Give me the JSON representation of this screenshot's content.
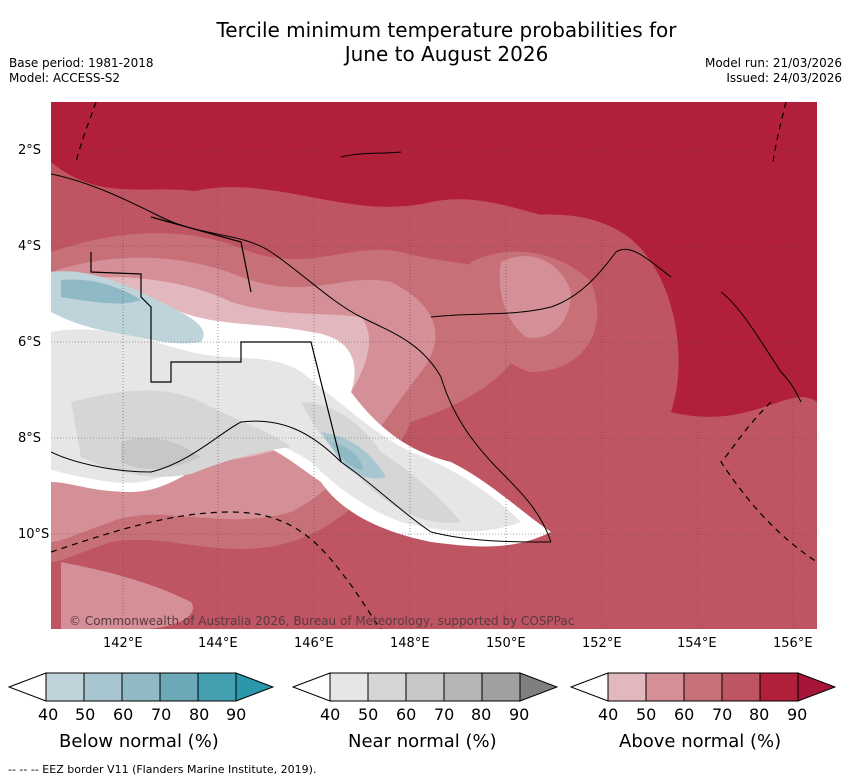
{
  "title_line1": "Tercile minimum temperature probabilities for",
  "title_line2": "June to August 2026",
  "meta": {
    "base_period": "Base period: 1981-2018",
    "model": "Model: ACCESS-S2",
    "model_run": "Model run: 21/03/2026",
    "issued": "Issued: 24/03/2026"
  },
  "map": {
    "lat_labels": [
      "2°S",
      "4°S",
      "6°S",
      "8°S",
      "10°S"
    ],
    "lon_labels": [
      "142°E",
      "144°E",
      "146°E",
      "148°E",
      "150°E",
      "152°E",
      "154°E",
      "156°E"
    ],
    "copyright": "© Commonwealth of Australia 2026, Bureau of Meteorology, supported by COSPPac"
  },
  "colorbars": [
    {
      "name": "below",
      "title": "Below normal (%)",
      "ticks": [
        "40",
        "50",
        "60",
        "70",
        "80",
        "90"
      ],
      "colors": [
        "#bfd4da",
        "#a7c6cf",
        "#8fb9c4",
        "#6ca9b8",
        "#449fb1",
        "#2a97ab"
      ]
    },
    {
      "name": "near",
      "title": "Near normal (%)",
      "ticks": [
        "40",
        "50",
        "60",
        "70",
        "80",
        "90"
      ],
      "colors": [
        "#e6e6e6",
        "#d6d6d6",
        "#c7c7c7",
        "#b5b5b5",
        "#a0a0a0",
        "#7f7f7f"
      ]
    },
    {
      "name": "above",
      "title": "Above normal (%)",
      "ticks": [
        "40",
        "50",
        "60",
        "70",
        "80",
        "90"
      ],
      "colors": [
        "#e2b7bd",
        "#d58f97",
        "#c87078",
        "#bf5462",
        "#b21f3b",
        "#a8153a"
      ]
    }
  ],
  "footer": "--  --  -- EEZ border V11 (Flanders Marine Institute, 2019)."
}
